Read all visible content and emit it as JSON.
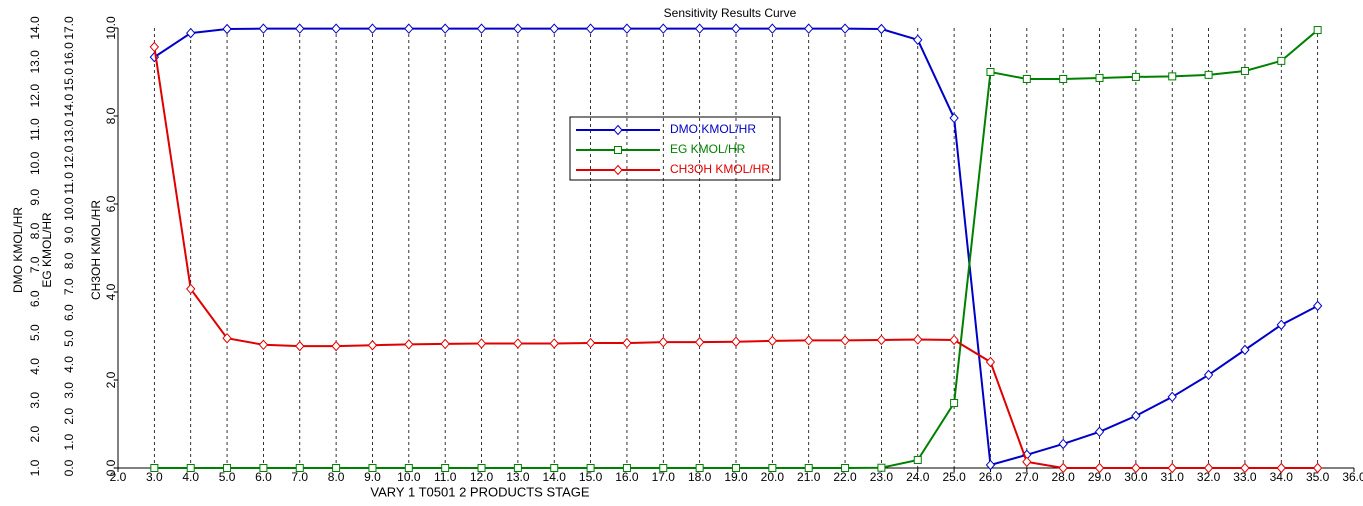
{
  "chart_data": {
    "type": "line",
    "title": "Sensitivity Results Curve",
    "x_label": "VARY   1 T0501 2 PRODUCTS STAGE",
    "y_label": "DMO KMOL/HR",
    "y2_label": "EG KMOL/HR",
    "y3_label": "CH3OH KMOL/HR",
    "x": [
      3,
      4,
      5,
      6,
      7,
      8,
      9,
      10,
      11,
      12,
      13,
      14,
      15,
      16,
      17,
      18,
      19,
      20,
      21,
      22,
      23,
      24,
      25,
      26,
      27,
      28,
      29,
      30,
      31,
      32,
      33,
      34,
      35
    ],
    "xlim": [
      2,
      36
    ],
    "xticks": [
      {
        "value": 2,
        "label": "2.0"
      },
      {
        "value": 3,
        "label": "3.0"
      },
      {
        "value": 4,
        "label": "4.0"
      },
      {
        "value": 5,
        "label": "5.0"
      },
      {
        "value": 6,
        "label": "6.0"
      },
      {
        "value": 7,
        "label": "7.0"
      },
      {
        "value": 8,
        "label": "8.0"
      },
      {
        "value": 9,
        "label": "9.0"
      },
      {
        "value": 10,
        "label": "10.0"
      },
      {
        "value": 11,
        "label": "11.0"
      },
      {
        "value": 12,
        "label": "12.0"
      },
      {
        "value": 13,
        "label": "13.0"
      },
      {
        "value": 14,
        "label": "14.0"
      },
      {
        "value": 15,
        "label": "15.0"
      },
      {
        "value": 16,
        "label": "16.0"
      },
      {
        "value": 17,
        "label": "17.0"
      },
      {
        "value": 18,
        "label": "18.0"
      },
      {
        "value": 19,
        "label": "19.0"
      },
      {
        "value": 20,
        "label": "20.0"
      },
      {
        "value": 21,
        "label": "21.0"
      },
      {
        "value": 22,
        "label": "22.0"
      },
      {
        "value": 23,
        "label": "23.0"
      },
      {
        "value": 24,
        "label": "24.0"
      },
      {
        "value": 25,
        "label": "25.0"
      },
      {
        "value": 26,
        "label": "26.0"
      },
      {
        "value": 27,
        "label": "27.0"
      },
      {
        "value": 28,
        "label": "28.0"
      },
      {
        "value": 29,
        "label": "29.0"
      },
      {
        "value": 30,
        "label": "30.0"
      },
      {
        "value": 31,
        "label": "31.0"
      },
      {
        "value": 32,
        "label": "32.0"
      },
      {
        "value": 33,
        "label": "33.0"
      },
      {
        "value": 34,
        "label": "34.0"
      },
      {
        "value": 35,
        "label": "35.0"
      },
      {
        "value": 36,
        "label": "36.0"
      }
    ],
    "ylim": [
      1,
      14
    ],
    "yticks": [
      {
        "value": 1,
        "label": "1.0"
      },
      {
        "value": 2,
        "label": "2.0"
      },
      {
        "value": 3,
        "label": "3.0"
      },
      {
        "value": 4,
        "label": "4.0"
      },
      {
        "value": 5,
        "label": "5.0"
      },
      {
        "value": 6,
        "label": "6.0"
      },
      {
        "value": 7,
        "label": "7.0"
      },
      {
        "value": 8,
        "label": "8.0"
      },
      {
        "value": 9,
        "label": "9.0"
      },
      {
        "value": 10,
        "label": "10.0"
      },
      {
        "value": 11,
        "label": "11.0"
      },
      {
        "value": 12,
        "label": "12.0"
      },
      {
        "value": 13,
        "label": "13.0"
      },
      {
        "value": 14,
        "label": "14.0"
      }
    ],
    "y2lim": [
      0,
      17
    ],
    "y2ticks": [
      {
        "value": 0,
        "label": "0.0"
      },
      {
        "value": 1,
        "label": "1.0"
      },
      {
        "value": 2,
        "label": "2.0"
      },
      {
        "value": 3,
        "label": "3.0"
      },
      {
        "value": 4,
        "label": "4.0"
      },
      {
        "value": 5,
        "label": "5.0"
      },
      {
        "value": 6,
        "label": "6.0"
      },
      {
        "value": 7,
        "label": "7.0"
      },
      {
        "value": 8,
        "label": "8.0"
      },
      {
        "value": 9,
        "label": "9.0"
      },
      {
        "value": 10,
        "label": "10.0"
      },
      {
        "value": 11,
        "label": "11.0"
      },
      {
        "value": 12,
        "label": "12.0"
      },
      {
        "value": 13,
        "label": "13.0"
      },
      {
        "value": 14,
        "label": "14.0"
      },
      {
        "value": 15,
        "label": "15.0"
      },
      {
        "value": 16,
        "label": "16.0"
      },
      {
        "value": 17,
        "label": "17.0"
      }
    ],
    "y3lim": [
      0,
      10
    ],
    "y3ticks": [
      {
        "value": 0,
        "label": "0.0"
      },
      {
        "value": 2,
        "label": "2.0"
      },
      {
        "value": 4,
        "label": "4.0"
      },
      {
        "value": 6,
        "label": "6.0"
      },
      {
        "value": 8,
        "label": "8.0"
      },
      {
        "value": 10,
        "label": "10.0"
      }
    ],
    "grid": true,
    "series": [
      {
        "name": "DMO KMOL/HR",
        "color": "#0000c8",
        "marker": "diamond",
        "axis": "y",
        "values": [
          13.14,
          13.85,
          13.97,
          13.98,
          13.98,
          13.98,
          13.98,
          13.98,
          13.98,
          13.98,
          13.98,
          13.98,
          13.98,
          13.98,
          13.98,
          13.98,
          13.98,
          13.98,
          13.98,
          13.98,
          13.97,
          13.65,
          11.34,
          1.09,
          1.39,
          1.71,
          2.07,
          2.54,
          3.1,
          3.75,
          4.49,
          5.23,
          5.79
        ]
      },
      {
        "name": "EG KMOL/HR",
        "color": "#008000",
        "marker": "square",
        "axis": "y2",
        "values": [
          0,
          0,
          0,
          0,
          0,
          0,
          0,
          0,
          0,
          0,
          0,
          0,
          0,
          0,
          0,
          0,
          0,
          0,
          0,
          0,
          0.01,
          0.31,
          2.51,
          15.3,
          15.03,
          15.03,
          15.07,
          15.11,
          15.13,
          15.19,
          15.34,
          15.73,
          16.92
        ]
      },
      {
        "name": "CH3OH KMOL/HR",
        "color": "#e00000",
        "marker": "diamond",
        "axis": "y3",
        "values": [
          9.57,
          4.07,
          2.95,
          2.8,
          2.77,
          2.77,
          2.79,
          2.81,
          2.82,
          2.83,
          2.83,
          2.83,
          2.84,
          2.84,
          2.86,
          2.86,
          2.87,
          2.89,
          2.9,
          2.9,
          2.91,
          2.92,
          2.91,
          2.41,
          0.14,
          0,
          0,
          0,
          0,
          0,
          0,
          0,
          0
        ]
      }
    ]
  }
}
